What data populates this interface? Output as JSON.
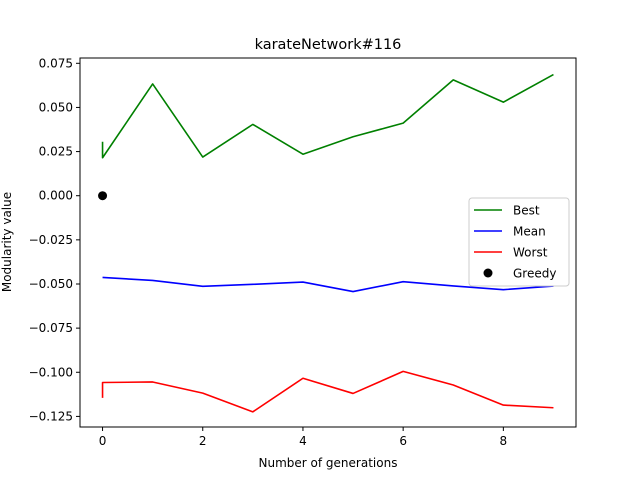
{
  "chart_data": {
    "type": "line",
    "title": "karateNetwork#116",
    "xlabel": "Number of generations",
    "ylabel": "Modularity value",
    "xlim": [
      -0.45,
      9.45
    ],
    "ylim": [
      -0.131,
      0.078
    ],
    "xticks": [
      0,
      2,
      4,
      6,
      8
    ],
    "yticks": [
      0.075,
      0.05,
      0.025,
      0.0,
      -0.025,
      -0.05,
      -0.075,
      -0.1,
      -0.125
    ],
    "ytick_labels": [
      "0.075",
      "0.050",
      "0.025",
      "0.000",
      "−0.025",
      "−0.050",
      "−0.075",
      "−0.100",
      "−0.125"
    ],
    "legend_position": "center-right",
    "series": [
      {
        "name": "Best",
        "color": "#008000",
        "kind": "line",
        "points": [
          [
            0,
            0.0306
          ],
          [
            0,
            0.0215
          ],
          [
            1,
            0.0633
          ],
          [
            2,
            0.0219
          ],
          [
            3,
            0.0404
          ],
          [
            4,
            0.0235
          ],
          [
            5,
            0.0334
          ],
          [
            6,
            0.0411
          ],
          [
            7,
            0.0656
          ],
          [
            8,
            0.053
          ],
          [
            9,
            0.0686
          ]
        ]
      },
      {
        "name": "Mean",
        "color": "#0000ff",
        "kind": "line",
        "points": [
          [
            0,
            -0.0463
          ],
          [
            1,
            -0.048
          ],
          [
            2,
            -0.0513
          ],
          [
            3,
            -0.0502
          ],
          [
            4,
            -0.0489
          ],
          [
            5,
            -0.0543
          ],
          [
            6,
            -0.0487
          ],
          [
            7,
            -0.0511
          ],
          [
            8,
            -0.0532
          ],
          [
            9,
            -0.0512
          ]
        ]
      },
      {
        "name": "Worst",
        "color": "#ff0000",
        "kind": "line",
        "points": [
          [
            0,
            -0.1145
          ],
          [
            0,
            -0.1058
          ],
          [
            1,
            -0.1055
          ],
          [
            2,
            -0.1118
          ],
          [
            3,
            -0.1224
          ],
          [
            4,
            -0.1034
          ],
          [
            5,
            -0.112
          ],
          [
            6,
            -0.0995
          ],
          [
            7,
            -0.1072
          ],
          [
            8,
            -0.1186
          ],
          [
            9,
            -0.1201
          ]
        ]
      },
      {
        "name": "Greedy",
        "color": "#000000",
        "kind": "scatter",
        "points": [
          [
            0,
            0.0
          ]
        ]
      }
    ]
  }
}
